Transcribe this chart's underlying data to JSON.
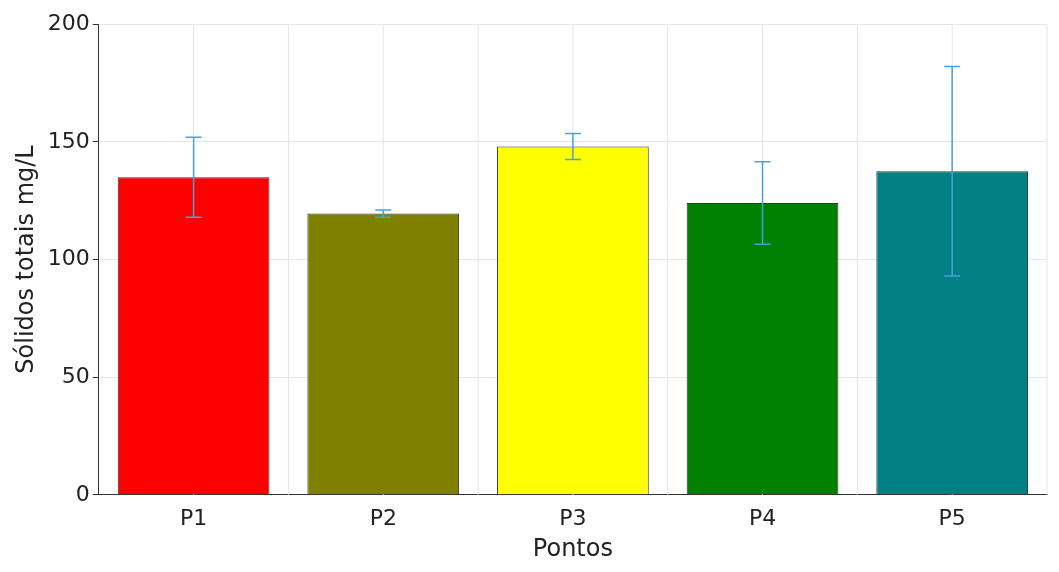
{
  "chart_data": {
    "type": "bar",
    "xlabel": "Pontos",
    "ylabel": "Sólidos totais mg/L",
    "categories": [
      "P1",
      "P2",
      "P3",
      "P4",
      "P5"
    ],
    "values": [
      135,
      119.5,
      148,
      124,
      137.5
    ],
    "colors": [
      "#ff0000",
      "#808000",
      "#ffff00",
      "#008000",
      "#008080"
    ],
    "errors": [
      17,
      1.5,
      5.5,
      17.5,
      44.5
    ],
    "ylim": [
      0,
      200
    ],
    "yticks": [
      0,
      50,
      100,
      150,
      200
    ],
    "grid": true
  }
}
